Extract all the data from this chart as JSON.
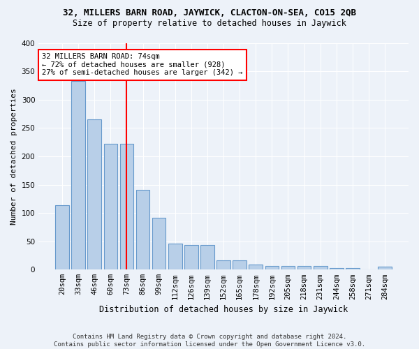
{
  "title1": "32, MILLERS BARN ROAD, JAYWICK, CLACTON-ON-SEA, CO15 2QB",
  "title2": "Size of property relative to detached houses in Jaywick",
  "xlabel": "Distribution of detached houses by size in Jaywick",
  "ylabel": "Number of detached properties",
  "categories": [
    "20sqm",
    "33sqm",
    "46sqm",
    "60sqm",
    "73sqm",
    "86sqm",
    "99sqm",
    "112sqm",
    "126sqm",
    "139sqm",
    "152sqm",
    "165sqm",
    "178sqm",
    "192sqm",
    "205sqm",
    "218sqm",
    "231sqm",
    "244sqm",
    "258sqm",
    "271sqm",
    "284sqm"
  ],
  "values": [
    114,
    333,
    265,
    222,
    222,
    141,
    91,
    46,
    44,
    44,
    16,
    16,
    9,
    7,
    6,
    6,
    6,
    3,
    3,
    0,
    5
  ],
  "bar_color": "#b8cfe8",
  "bar_edge_color": "#6699cc",
  "vline_x_index": 4,
  "vline_color": "red",
  "annotation_text": "32 MILLERS BARN ROAD: 74sqm\n← 72% of detached houses are smaller (928)\n27% of semi-detached houses are larger (342) →",
  "annotation_box_color": "white",
  "annotation_box_edge": "red",
  "ylim": [
    0,
    400
  ],
  "yticks": [
    0,
    50,
    100,
    150,
    200,
    250,
    300,
    350,
    400
  ],
  "footer": "Contains HM Land Registry data © Crown copyright and database right 2024.\nContains public sector information licensed under the Open Government Licence v3.0.",
  "bg_color": "#edf2f9",
  "grid_color": "#ffffff",
  "title1_fontsize": 9,
  "title2_fontsize": 8.5,
  "ylabel_fontsize": 8,
  "xlabel_fontsize": 8.5,
  "tick_fontsize": 7.5,
  "annot_fontsize": 7.5,
  "footer_fontsize": 6.5
}
